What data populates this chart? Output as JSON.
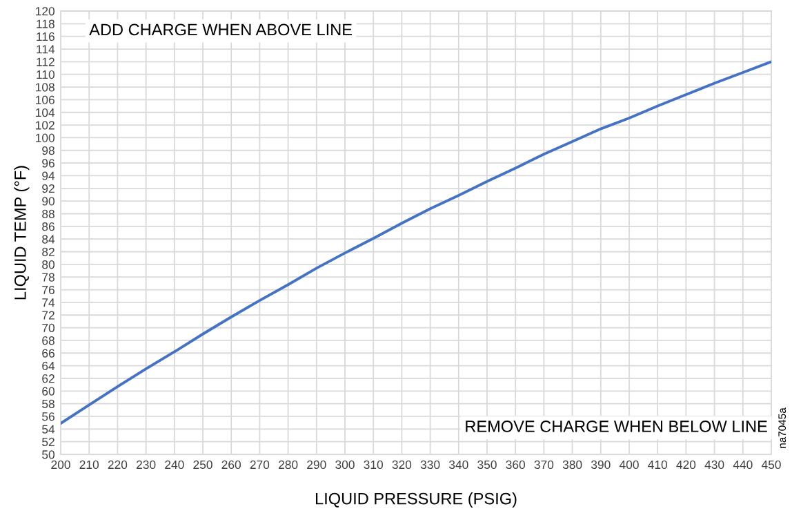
{
  "chart_data": {
    "type": "line",
    "xlabel": "LIQUID PRESSURE (PSIG)",
    "ylabel": "LIQUID TEMP (°F)",
    "x": [
      200,
      210,
      220,
      230,
      240,
      250,
      260,
      270,
      280,
      290,
      300,
      310,
      320,
      330,
      340,
      350,
      360,
      370,
      380,
      390,
      400,
      410,
      420,
      430,
      440,
      450
    ],
    "series": [
      {
        "color": "#4472c4",
        "values": [
          54.9,
          57.8,
          60.7,
          63.5,
          66.2,
          69.0,
          71.7,
          74.3,
          76.8,
          79.4,
          81.8,
          84.1,
          86.5,
          88.8,
          90.9,
          93.1,
          95.2,
          97.4,
          99.4,
          101.4,
          103.1,
          105.0,
          106.8,
          108.6,
          110.3,
          112.0
        ]
      }
    ],
    "xlim": [
      200,
      450
    ],
    "xticks": [
      200,
      210,
      220,
      230,
      240,
      250,
      260,
      270,
      280,
      290,
      300,
      310,
      320,
      330,
      340,
      350,
      360,
      370,
      380,
      390,
      400,
      410,
      420,
      430,
      440,
      450
    ],
    "ylim": [
      50,
      120
    ],
    "yticks": [
      50,
      52,
      54,
      56,
      58,
      60,
      62,
      64,
      66,
      68,
      70,
      72,
      74,
      76,
      78,
      80,
      82,
      84,
      86,
      88,
      90,
      92,
      94,
      96,
      98,
      100,
      102,
      104,
      106,
      108,
      110,
      112,
      114,
      116,
      118,
      120
    ],
    "grid": true,
    "marker": "none",
    "line_style": "solid",
    "legend": false,
    "annotations": [
      "ADD CHARGE WHEN ABOVE LINE",
      "REMOVE CHARGE WHEN BELOW LINE",
      "na7045a"
    ]
  }
}
